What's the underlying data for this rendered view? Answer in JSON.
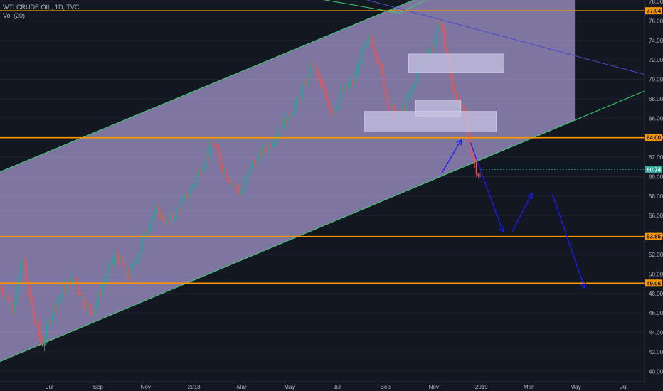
{
  "legend": {
    "symbol": "WTI CRUDE OIL, 1D, TVC",
    "volume": "Vol (20)"
  },
  "colors": {
    "background": "#131722",
    "channel_fill": "#9c8fc4",
    "channel_line": "#3bd16f",
    "horizontal_level": "#ff9800",
    "projection_arrow": "#1a1aff",
    "candle_up": "#26a69a",
    "candle_down": "#ef5350",
    "zone_fill": "#c9c3e6",
    "top_trendline": "#4a4acc"
  },
  "chart_data": {
    "type": "candlestick",
    "title": "WTI CRUDE OIL, 1D, TVC",
    "ylabel": "",
    "xlabel": "",
    "ylim": [
      39.0,
      78.0
    ],
    "x_ticks": [
      "Jul",
      "Sep",
      "Nov",
      "2018",
      "Mar",
      "May",
      "Jul",
      "Sep",
      "Nov",
      "2019",
      "Mar",
      "May",
      "Jul"
    ],
    "y_ticks": [
      "40.00",
      "42.00",
      "44.00",
      "46.00",
      "48.00",
      "50.00",
      "52.00",
      "54.00",
      "56.00",
      "58.00",
      "60.00",
      "62.00",
      "64.00",
      "66.00",
      "68.00",
      "70.00",
      "72.00",
      "74.00",
      "76.00",
      "78.00"
    ],
    "horizontal_levels": [
      {
        "value": 77.04,
        "label": "77.04"
      },
      {
        "value": 64.0,
        "label": "64.00"
      },
      {
        "value": 53.85,
        "label": "53.85"
      },
      {
        "value": 49.06,
        "label": "49.06"
      }
    ],
    "last_price": {
      "value": 60.74,
      "label": "60.74"
    },
    "price_path": [
      [
        0.0,
        48.6
      ],
      [
        0.02,
        46.5
      ],
      [
        0.035,
        51.6
      ],
      [
        0.05,
        46.2
      ],
      [
        0.065,
        42.6
      ],
      [
        0.08,
        46.0
      ],
      [
        0.1,
        48.5
      ],
      [
        0.115,
        49.6
      ],
      [
        0.13,
        47.0
      ],
      [
        0.145,
        46.2
      ],
      [
        0.16,
        49.0
      ],
      [
        0.18,
        52.2
      ],
      [
        0.2,
        49.5
      ],
      [
        0.22,
        53.2
      ],
      [
        0.24,
        56.6
      ],
      [
        0.26,
        55.2
      ],
      [
        0.28,
        57.0
      ],
      [
        0.3,
        59.2
      ],
      [
        0.315,
        61.5
      ],
      [
        0.33,
        63.5
      ],
      [
        0.345,
        61.0
      ],
      [
        0.36,
        59.3
      ],
      [
        0.375,
        58.2
      ],
      [
        0.39,
        61.3
      ],
      [
        0.405,
        62.3
      ],
      [
        0.42,
        63.5
      ],
      [
        0.44,
        65.5
      ],
      [
        0.46,
        67.5
      ],
      [
        0.47,
        69.0
      ],
      [
        0.485,
        71.5
      ],
      [
        0.5,
        69.0
      ],
      [
        0.515,
        66.6
      ],
      [
        0.53,
        68.5
      ],
      [
        0.55,
        70.0
      ],
      [
        0.56,
        72.5
      ],
      [
        0.575,
        74.2
      ],
      [
        0.585,
        72.5
      ],
      [
        0.6,
        68.0
      ],
      [
        0.615,
        65.8
      ],
      [
        0.63,
        67.5
      ],
      [
        0.645,
        70.0
      ],
      [
        0.655,
        72.0
      ],
      [
        0.665,
        72.8
      ],
      [
        0.675,
        74.0
      ],
      [
        0.683,
        76.5
      ],
      [
        0.69,
        73.5
      ],
      [
        0.7,
        70.0
      ],
      [
        0.71,
        67.5
      ],
      [
        0.72,
        66.5
      ],
      [
        0.73,
        63.0
      ],
      [
        0.738,
        61.0
      ],
      [
        0.745,
        59.9
      ]
    ],
    "channel": {
      "upper": [
        [
          0.0,
          60.5
        ],
        [
          1.0,
          88.0
        ]
      ],
      "lower": [
        [
          0.0,
          41.0
        ],
        [
          1.0,
          68.8
        ]
      ],
      "fill_right": 0.892
    },
    "zones": [
      {
        "x0": 0.634,
        "x1": 0.782,
        "y0": 70.7,
        "y1": 72.6
      },
      {
        "x0": 0.645,
        "x1": 0.715,
        "y0": 66.2,
        "y1": 67.8
      },
      {
        "x0": 0.565,
        "x1": 0.77,
        "y0": 64.6,
        "y1": 66.7
      }
    ],
    "projection": [
      [
        0.685,
        60.3
      ],
      [
        0.715,
        63.7
      ],
      [
        0.73,
        63.5
      ],
      [
        0.78,
        54.4
      ],
      [
        0.795,
        54.4
      ],
      [
        0.825,
        58.2
      ],
      [
        0.857,
        58.2
      ],
      [
        0.907,
        48.6
      ]
    ]
  }
}
